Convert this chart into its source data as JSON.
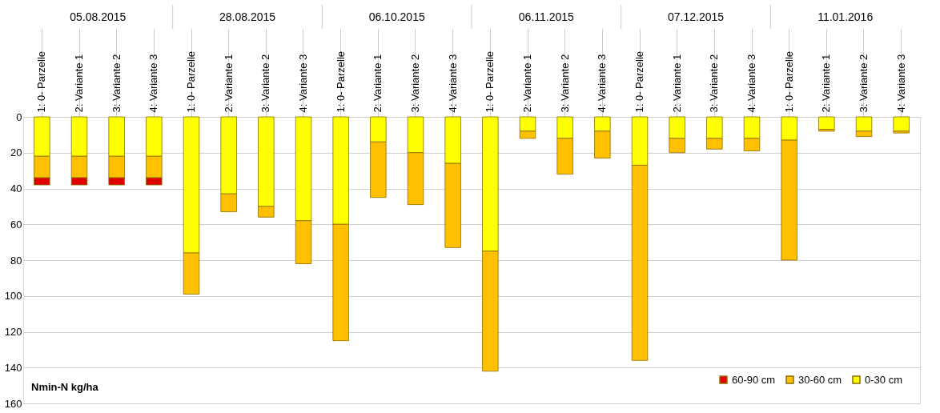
{
  "chart_data": {
    "type": "bar",
    "stacked": true,
    "ylabel": "Nmin-N kg/ha",
    "categories": [
      "1: 0- Parzelle",
      "2: Variante 1",
      "3: Variante 2",
      "4: Variante 3",
      "1: 0- Parzelle",
      "2: Variante 1",
      "3: Variante 2",
      "4: Variante 3",
      "1: 0- Parzelle",
      "2: Variante 1",
      "3: Variante 2",
      "4: Variante 3",
      "1: 0- Parzelle",
      "2: Variante 1",
      "3: Variante 2",
      "4: Variante 3",
      "1: 0- Parzelle",
      "2: Variante 1",
      "3: Variante 2",
      "4: Variante 3",
      "1: 0- Parzelle",
      "2: Variante 1",
      "3: Variante 2",
      "4: Variante 3"
    ],
    "annotations": [
      "05.08.2015",
      "28.08.2015",
      "06.10.2015",
      "06.11.2015",
      "07.12.2015",
      "11.01.2016"
    ],
    "series": [
      {
        "name": "0-30 cm",
        "color": "#ffff00",
        "values": [
          22,
          22,
          22,
          22,
          76,
          43,
          50,
          58,
          60,
          14,
          20,
          26,
          75,
          8,
          12,
          8,
          27,
          12,
          12,
          12,
          13,
          7,
          8,
          8
        ]
      },
      {
        "name": "30-60 cm",
        "color": "#ffc000",
        "values": [
          12,
          12,
          12,
          12,
          23,
          10,
          6,
          24,
          65,
          31,
          29,
          47,
          67,
          4,
          20,
          15,
          109,
          8,
          6,
          7,
          67,
          1,
          3,
          1
        ]
      },
      {
        "name": "60-90 cm",
        "color": "#e00000",
        "values": [
          4,
          4,
          4,
          4,
          null,
          null,
          null,
          null,
          null,
          null,
          null,
          null,
          null,
          null,
          null,
          null,
          null,
          null,
          null,
          null,
          null,
          null,
          null,
          null
        ]
      }
    ],
    "ylim": [
      160,
      0
    ],
    "yticks": [
      0,
      20,
      40,
      60,
      80,
      100,
      120,
      140,
      160
    ],
    "grid": "y",
    "legend": "bottom right"
  }
}
